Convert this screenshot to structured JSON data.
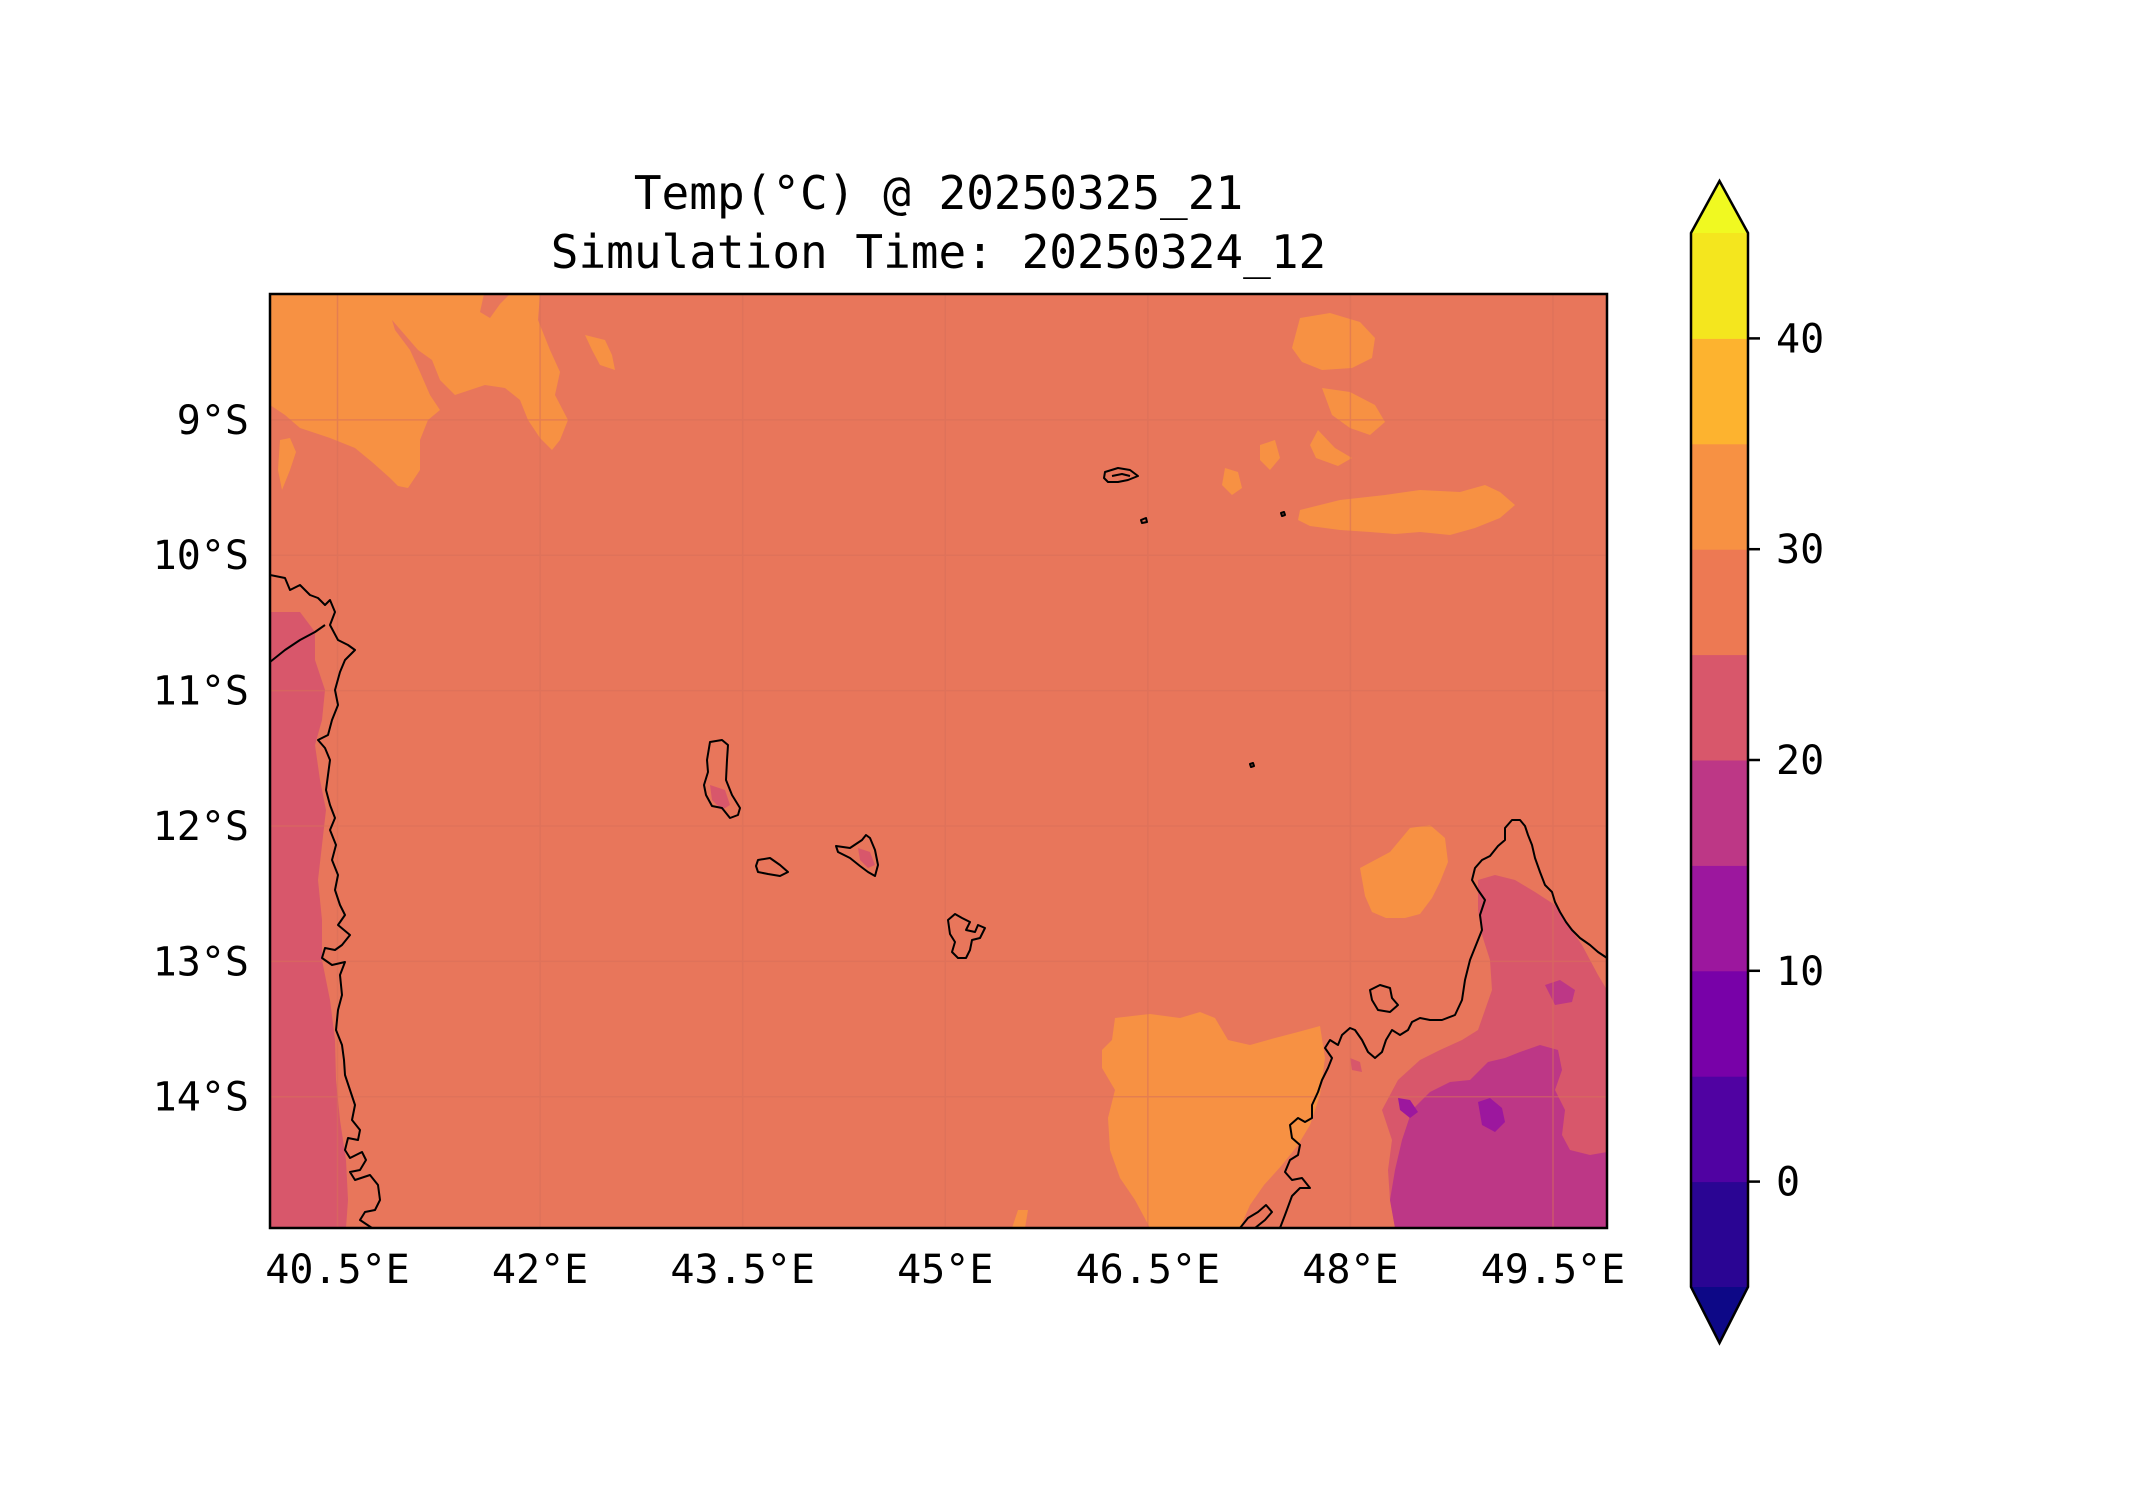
{
  "title": {
    "line1": "Temp(°C) @ 20250325_21",
    "line2": "Simulation Time: 20250324_12"
  },
  "map": {
    "extent": {
      "lon": [
        40.0,
        49.9
      ],
      "lat": [
        -14.97,
        -8.07
      ]
    },
    "x_ticks": [
      {
        "value": 40.5,
        "label": "40.5°E"
      },
      {
        "value": 42.0,
        "label": "42°E"
      },
      {
        "value": 43.5,
        "label": "43.5°E"
      },
      {
        "value": 45.0,
        "label": "45°E"
      },
      {
        "value": 46.5,
        "label": "46.5°E"
      },
      {
        "value": 48.0,
        "label": "48°E"
      },
      {
        "value": 49.5,
        "label": "49.5°E"
      }
    ],
    "y_ticks": [
      {
        "value": -9,
        "label": "9°S"
      },
      {
        "value": -10,
        "label": "10°S"
      },
      {
        "value": -11,
        "label": "11°S"
      },
      {
        "value": -12,
        "label": "12°S"
      },
      {
        "value": -13,
        "label": "13°S"
      },
      {
        "value": -14,
        "label": "14°S"
      }
    ],
    "field_base_color": "#e8765b",
    "gridline_color": "#d8705a"
  },
  "colorbar": {
    "levels": [
      -5,
      0,
      5,
      10,
      15,
      20,
      25,
      30,
      35,
      40,
      45
    ],
    "colors": [
      "#2a0593",
      "#5002a2",
      "#7801a8",
      "#9c179e",
      "#bd3786",
      "#d8576b",
      "#ed7953",
      "#f79143",
      "#fdb32f",
      "#f4e61e"
    ],
    "under_color": "#0d0887",
    "over_color": "#f0f921",
    "ticks": [
      {
        "value": 0,
        "label": "0"
      },
      {
        "value": 10,
        "label": "10"
      },
      {
        "value": 20,
        "label": "20"
      },
      {
        "value": 30,
        "label": "30"
      },
      {
        "value": 40,
        "label": "40"
      }
    ]
  }
}
